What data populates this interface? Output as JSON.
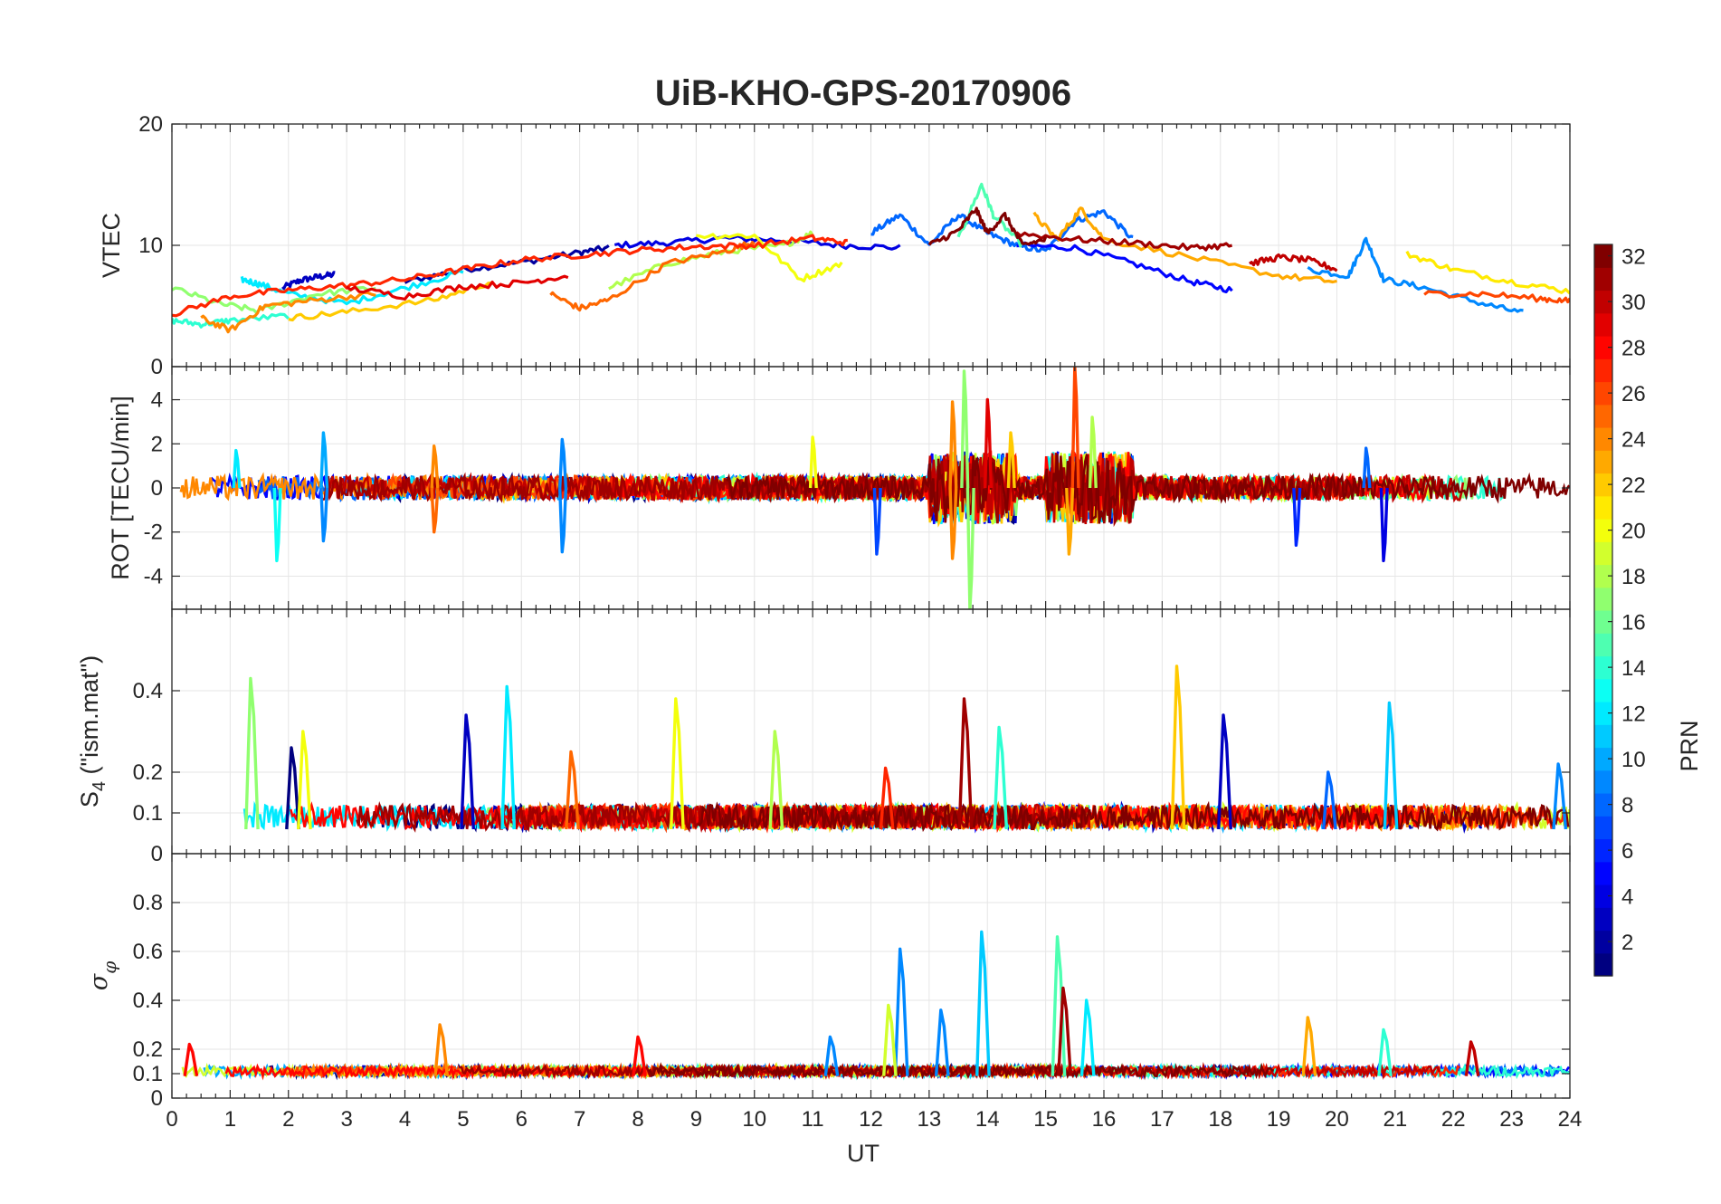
{
  "chart_data": {
    "type": "line",
    "title": "UiB-KHO-GPS-20170906",
    "xlabel": "UT",
    "xlim": [
      0,
      24
    ],
    "xticks": [
      0,
      1,
      2,
      3,
      4,
      5,
      6,
      7,
      8,
      9,
      10,
      11,
      12,
      13,
      14,
      15,
      16,
      17,
      18,
      19,
      20,
      21,
      22,
      23,
      24
    ],
    "grid": true,
    "colorbar": {
      "label": "PRN",
      "range": [
        1,
        32
      ],
      "ticks": [
        2,
        4,
        6,
        8,
        10,
        12,
        14,
        16,
        18,
        20,
        22,
        24,
        26,
        28,
        30,
        32
      ],
      "colormap": "jet",
      "location": "right"
    },
    "panels": [
      {
        "id": "vtec",
        "ylabel": "VTEC",
        "ylim": [
          0,
          20
        ],
        "yticks": [
          0,
          10,
          20
        ],
        "series": [
          {
            "prn": 3,
            "x": [
              1.9,
              2.2,
              2.5,
              2.8
            ],
            "y": [
              6.5,
              7.1,
              7.4,
              7.6
            ]
          },
          {
            "prn": 2,
            "x": [
              4.0,
              5.0,
              6.0,
              7.0,
              7.5
            ],
            "y": [
              7.0,
              8.0,
              8.6,
              9.4,
              9.8
            ]
          },
          {
            "prn": 4,
            "x": [
              7.6,
              8.5,
              9.5,
              10.5,
              11.5,
              12.5
            ],
            "y": [
              10.0,
              10.2,
              10.6,
              10.4,
              10.0,
              9.8
            ]
          },
          {
            "prn": 8,
            "x": [
              12.0,
              12.5,
              13.0,
              13.5,
              14.0,
              14.5,
              15.0,
              15.5,
              16.0,
              16.5
            ],
            "y": [
              11.0,
              12.5,
              10.0,
              12.5,
              11.0,
              10.0,
              9.5,
              12.0,
              12.8,
              10.5
            ]
          },
          {
            "prn": 5,
            "x": [
              14.5,
              15.5,
              16.5,
              17.5,
              18.2
            ],
            "y": [
              10.0,
              9.8,
              8.5,
              7.0,
              6.3
            ]
          },
          {
            "prn": 9,
            "x": [
              19.5,
              20.2,
              20.5,
              20.8,
              21.5,
              22.5,
              23.2
            ],
            "y": [
              8.0,
              7.5,
              10.5,
              7.2,
              6.5,
              5.2,
              4.4
            ]
          },
          {
            "prn": 12,
            "x": [
              1.2,
              1.5,
              2.0,
              3.0,
              4.0,
              5.0
            ],
            "y": [
              7.2,
              6.8,
              6.0,
              5.2,
              6.5,
              7.8
            ]
          },
          {
            "prn": 14,
            "x": [
              0.0,
              0.5,
              1.0,
              2.0
            ],
            "y": [
              3.8,
              3.5,
              3.8,
              4.2
            ]
          },
          {
            "prn": 15,
            "x": [
              13.5,
              13.9,
              14.1,
              14.6
            ],
            "y": [
              10.5,
              15.0,
              12.5,
              10.0
            ]
          },
          {
            "prn": 17,
            "x": [
              0.0,
              0.8,
              1.5,
              2.5,
              3.5
            ],
            "y": [
              6.5,
              5.2,
              4.6,
              6.0,
              6.5
            ]
          },
          {
            "prn": 18,
            "x": [
              7.5,
              8.5,
              9.5,
              10.5,
              11.0
            ],
            "y": [
              6.5,
              8.5,
              9.5,
              10.0,
              11.0
            ]
          },
          {
            "prn": 20,
            "x": [
              9.0,
              10.0,
              10.8,
              11.5
            ],
            "y": [
              10.8,
              10.8,
              7.2,
              8.5
            ]
          },
          {
            "prn": 21,
            "x": [
              21.2,
              22.0,
              23.0,
              24.0
            ],
            "y": [
              9.3,
              8.0,
              7.0,
              6.2
            ]
          },
          {
            "prn": 22,
            "x": [
              2.0,
              3.0,
              4.5,
              5.5
            ],
            "y": [
              4.0,
              4.5,
              5.5,
              7.0
            ]
          },
          {
            "prn": 23,
            "x": [
              14.8,
              15.2,
              15.6,
              16.0,
              17.5,
              19.0,
              20.0
            ],
            "y": [
              12.5,
              10.5,
              13.0,
              10.5,
              9.0,
              7.5,
              7.0
            ]
          },
          {
            "prn": 24,
            "x": [
              0.5,
              1.0,
              1.6,
              2.5,
              3.5
            ],
            "y": [
              4.0,
              3.0,
              5.0,
              5.5,
              6.0
            ]
          },
          {
            "prn": 25,
            "x": [
              6.5,
              7.0,
              7.5,
              8.5,
              9.5,
              10.0
            ],
            "y": [
              6.0,
              4.8,
              5.5,
              8.5,
              9.5,
              10.3
            ]
          },
          {
            "prn": 27,
            "x": [
              0.0,
              1.0,
              2.0,
              3.0,
              4.0,
              5.0,
              6.0,
              7.0,
              8.0,
              9.0,
              10.0,
              11.0,
              11.6
            ],
            "y": [
              4.3,
              5.8,
              6.3,
              6.7,
              7.2,
              8.0,
              8.8,
              9.2,
              9.6,
              9.9,
              10.0,
              10.6,
              10.2
            ]
          },
          {
            "prn": 29,
            "x": [
              3.0,
              4.0,
              5.0,
              6.0,
              6.8
            ],
            "y": [
              6.5,
              5.8,
              6.6,
              6.9,
              7.5
            ]
          },
          {
            "prn": 30,
            "x": [
              18.5,
              19.0,
              19.5,
              20.0
            ],
            "y": [
              8.5,
              9.0,
              8.8,
              8.0
            ]
          },
          {
            "prn": 31,
            "x": [
              14.5,
              15.5,
              16.5,
              17.5,
              18.2
            ],
            "y": [
              11.0,
              10.5,
              10.2,
              9.8,
              10.0
            ]
          },
          {
            "prn": 32,
            "x": [
              13.0,
              13.5,
              13.8,
              14.0,
              14.3,
              14.6,
              15.0
            ],
            "y": [
              10.0,
              11.2,
              13.0,
              11.0,
              12.5,
              10.0,
              10.5
            ]
          },
          {
            "prn": 26,
            "x": [
              21.5,
              22.5,
              23.5,
              24.0
            ],
            "y": [
              6.0,
              6.0,
              5.6,
              5.4
            ]
          }
        ]
      },
      {
        "id": "rot",
        "ylabel": "ROT [TECU/min]",
        "ylim": [
          -5.5,
          5.5
        ],
        "yticks": [
          -4,
          -2,
          0,
          2,
          4
        ],
        "spikes": [
          {
            "prn": 10,
            "x": 2.6,
            "y": 2.5
          },
          {
            "prn": 13,
            "x": 1.8,
            "y": -3.3
          },
          {
            "prn": 9,
            "x": 2.6,
            "y": -2.4
          },
          {
            "prn": 24,
            "x": 4.5,
            "y": 1.9
          },
          {
            "prn": 25,
            "x": 4.5,
            "y": -2.0
          },
          {
            "prn": 9,
            "x": 6.7,
            "y": 2.2
          },
          {
            "prn": 9,
            "x": 6.7,
            "y": -2.9
          },
          {
            "prn": 7,
            "x": 12.1,
            "y": -3.0
          },
          {
            "prn": 20,
            "x": 11.0,
            "y": 2.3
          },
          {
            "prn": 24,
            "x": 13.4,
            "y": 3.9
          },
          {
            "prn": 24,
            "x": 13.4,
            "y": -3.2
          },
          {
            "prn": 17,
            "x": 13.6,
            "y": 5.3
          },
          {
            "prn": 17,
            "x": 13.7,
            "y": -5.5
          },
          {
            "prn": 29,
            "x": 14.0,
            "y": 4.0
          },
          {
            "prn": 26,
            "x": 15.5,
            "y": 5.5
          },
          {
            "prn": 23,
            "x": 15.4,
            "y": -3.0
          },
          {
            "prn": 18,
            "x": 15.8,
            "y": 3.2
          },
          {
            "prn": 6,
            "x": 19.3,
            "y": -2.6
          },
          {
            "prn": 4,
            "x": 20.8,
            "y": -3.3
          },
          {
            "prn": 8,
            "x": 20.5,
            "y": 1.8
          },
          {
            "prn": 12,
            "x": 1.1,
            "y": 1.7
          },
          {
            "prn": 22,
            "x": 14.4,
            "y": 2.5
          }
        ]
      },
      {
        "id": "s4",
        "ylabel": "S4 (\"ism.mat\")",
        "ylim": [
          0,
          0.6
        ],
        "yticks": [
          0,
          0.1,
          0.2,
          0.4
        ],
        "spikes": [
          {
            "prn": 17,
            "x": 1.35,
            "y": 0.43
          },
          {
            "prn": 1,
            "x": 2.05,
            "y": 0.26
          },
          {
            "prn": 20,
            "x": 2.25,
            "y": 0.3
          },
          {
            "prn": 3,
            "x": 5.05,
            "y": 0.34
          },
          {
            "prn": 12,
            "x": 5.75,
            "y": 0.41
          },
          {
            "prn": 25,
            "x": 6.85,
            "y": 0.25
          },
          {
            "prn": 20,
            "x": 8.65,
            "y": 0.38
          },
          {
            "prn": 18,
            "x": 10.35,
            "y": 0.3
          },
          {
            "prn": 27,
            "x": 12.25,
            "y": 0.21
          },
          {
            "prn": 31,
            "x": 13.6,
            "y": 0.38
          },
          {
            "prn": 14,
            "x": 14.2,
            "y": 0.31
          },
          {
            "prn": 22,
            "x": 17.25,
            "y": 0.46
          },
          {
            "prn": 3,
            "x": 18.05,
            "y": 0.34
          },
          {
            "prn": 11,
            "x": 20.9,
            "y": 0.37
          },
          {
            "prn": 9,
            "x": 23.8,
            "y": 0.22
          },
          {
            "prn": 8,
            "x": 19.85,
            "y": 0.2
          }
        ]
      },
      {
        "id": "sigma_phi",
        "ylabel": "σφ",
        "ylim": [
          0,
          1
        ],
        "yticks": [
          0,
          0.1,
          0.2,
          0.4,
          0.6,
          0.8
        ],
        "spikes": [
          {
            "prn": 28,
            "x": 0.3,
            "y": 0.22
          },
          {
            "prn": 24,
            "x": 4.6,
            "y": 0.3
          },
          {
            "prn": 28,
            "x": 8.0,
            "y": 0.25
          },
          {
            "prn": 9,
            "x": 11.3,
            "y": 0.25
          },
          {
            "prn": 9,
            "x": 12.5,
            "y": 0.61
          },
          {
            "prn": 19,
            "x": 12.3,
            "y": 0.38
          },
          {
            "prn": 9,
            "x": 13.2,
            "y": 0.36
          },
          {
            "prn": 11,
            "x": 13.9,
            "y": 0.68
          },
          {
            "prn": 15,
            "x": 15.2,
            "y": 0.66
          },
          {
            "prn": 31,
            "x": 15.3,
            "y": 0.45
          },
          {
            "prn": 12,
            "x": 15.7,
            "y": 0.4
          },
          {
            "prn": 23,
            "x": 19.5,
            "y": 0.33
          },
          {
            "prn": 14,
            "x": 20.8,
            "y": 0.28
          },
          {
            "prn": 30,
            "x": 22.3,
            "y": 0.23
          }
        ]
      }
    ]
  }
}
